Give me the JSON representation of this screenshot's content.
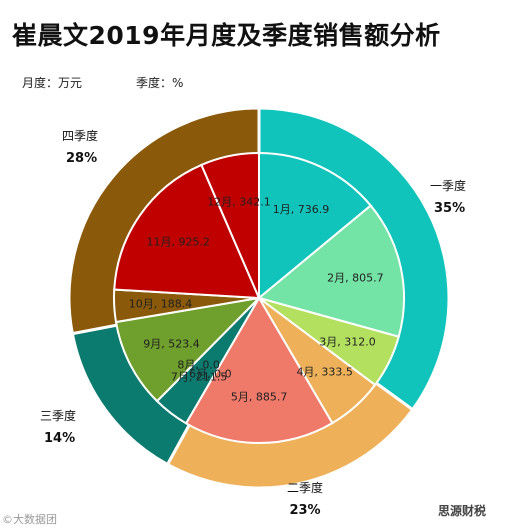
{
  "header": {
    "title": "崔晨文2019年月度及季度销售额分析",
    "unit_month": "月度：万元",
    "unit_quarter": "季度：%"
  },
  "watermarks": {
    "left": "©大数据团",
    "right": "思源财税"
  },
  "chart_data": {
    "type": "pie",
    "title": "崔晨文2019年月度及季度销售额分析",
    "outer_ring": {
      "name": "季度",
      "slices": [
        {
          "label": "一季度",
          "value": 35,
          "value_label": "35%",
          "color": "#10c4bb"
        },
        {
          "label": "二季度",
          "value": 23,
          "value_label": "23%",
          "color": "#eeb15a"
        },
        {
          "label": "三季度",
          "value": 14,
          "value_label": "14%",
          "color": "#0b7a6f"
        },
        {
          "label": "四季度",
          "value": 28,
          "value_label": "28%",
          "color": "#8a5a0a"
        }
      ]
    },
    "inner_pie": {
      "name": "月度",
      "slices": [
        {
          "label": "1月, 736.9",
          "value": 736.9,
          "color": "#10c4bb"
        },
        {
          "label": "2月, 805.7",
          "value": 805.7,
          "color": "#74e3a6"
        },
        {
          "label": "3月, 312.0",
          "value": 312.0,
          "color": "#b4e060"
        },
        {
          "label": "4月, 333.5",
          "value": 333.5,
          "color": "#eeb15a"
        },
        {
          "label": "5月, 885.7",
          "value": 885.7,
          "color": "#f07a6a"
        },
        {
          "label": "6月, 0.0",
          "value": 0.0,
          "color": "#e9463c"
        },
        {
          "label": "7月, 211.5",
          "value": 211.5,
          "color": "#0b7a6f"
        },
        {
          "label": "8月, 0.0",
          "value": 0.0,
          "color": "#3a9a6a"
        },
        {
          "label": "9月, 523.4",
          "value": 523.4,
          "color": "#6f9f2c"
        },
        {
          "label": "10月, 188.4",
          "value": 188.4,
          "color": "#8a5a0a"
        },
        {
          "label": "11月, 925.2",
          "value": 925.2,
          "color": "#c00000"
        },
        {
          "label": "12月, 342.1",
          "value": 342.1,
          "color": "#c00000"
        }
      ]
    }
  }
}
